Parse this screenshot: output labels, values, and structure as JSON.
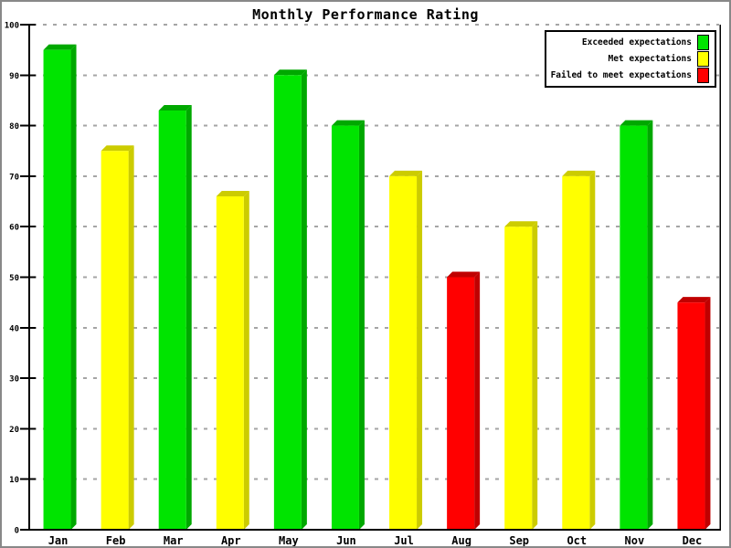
{
  "window": {
    "background": "#FFFFFF",
    "border_color": "#888888"
  },
  "chart_data": {
    "type": "bar",
    "style": "3d",
    "title": "Monthly Performance Rating",
    "categories": [
      "Jan",
      "Feb",
      "Mar",
      "Apr",
      "May",
      "Jun",
      "Jul",
      "Aug",
      "Sep",
      "Oct",
      "Nov",
      "Dec"
    ],
    "values": [
      95.5,
      75.5,
      83.5,
      66.5,
      90.5,
      80.5,
      70.5,
      50.5,
      60.5,
      70.5,
      80.5,
      45.5
    ],
    "bar_series": [
      "exceeded",
      "met",
      "exceeded",
      "met",
      "exceeded",
      "exceeded",
      "met",
      "failed",
      "met",
      "met",
      "exceeded",
      "failed"
    ],
    "series_legend": [
      {
        "key": "exceeded",
        "label": "Exceeded expectations",
        "color": "#00E400",
        "shade": "#00A800"
      },
      {
        "key": "met",
        "label": "Met expectations",
        "color": "#FFFF00",
        "shade": "#CCCC00"
      },
      {
        "key": "failed",
        "label": "Failed to meet expectations",
        "color": "#FF0000",
        "shade": "#C00000"
      }
    ],
    "xlabel": "",
    "ylabel": "",
    "ylim": [
      0,
      100
    ],
    "yticks": [
      0,
      10,
      20,
      30,
      40,
      50,
      60,
      70,
      80,
      90,
      100
    ],
    "grid": "horizontal-dashed",
    "legend_position": "top-right"
  },
  "colors": {
    "grid": "#A5A5A5",
    "axis": "#000000",
    "text": "#000000",
    "legend_border": "#000000",
    "legend_bg": "#FFFFFF"
  }
}
